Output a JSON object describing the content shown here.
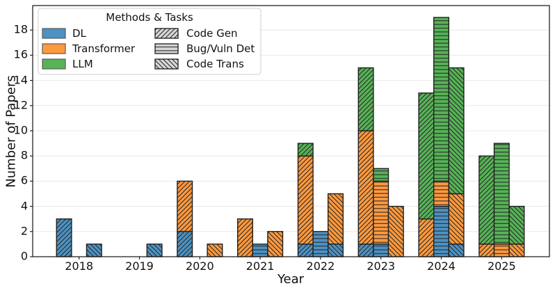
{
  "chart_data": {
    "type": "bar",
    "stacked_by": "method",
    "grouped_by": "task",
    "title": "",
    "xlabel": "Year",
    "ylabel": "Number of Papers",
    "legend_title": "Methods & Tasks",
    "categories": [
      "2018",
      "2019",
      "2020",
      "2021",
      "2022",
      "2023",
      "2024",
      "2025"
    ],
    "yticks": [
      0,
      2,
      4,
      6,
      8,
      10,
      12,
      14,
      16,
      18
    ],
    "ylim": [
      0,
      19.9
    ],
    "grid": "horizontal",
    "legend_position": "upper left",
    "colors": {
      "dl": "#4C92C3",
      "transformer": "#FF993E",
      "llm": "#56B356",
      "bar_edge": "#1f1f1f",
      "grid": "#e8e8e8",
      "hatch_swatch_fill": "#d6d6d6"
    },
    "methods": [
      {
        "name": "DL",
        "color": "#4C92C3"
      },
      {
        "name": "Transformer",
        "color": "#FF993E"
      },
      {
        "name": "LLM",
        "color": "#56B356"
      }
    ],
    "tasks": [
      {
        "name": "Code Gen",
        "hatch": "diagonal-forward"
      },
      {
        "name": "Bug/Vuln Det",
        "hatch": "horizontal"
      },
      {
        "name": "Code Trans",
        "hatch": "diagonal-backward"
      }
    ],
    "series": [
      {
        "task": "Code Gen",
        "stacks": [
          {
            "method": "DL",
            "values": [
              3,
              0,
              2,
              0,
              1,
              1,
              0,
              0
            ]
          },
          {
            "method": "Transformer",
            "values": [
              0,
              0,
              4,
              3,
              7,
              9,
              3,
              1
            ]
          },
          {
            "method": "LLM",
            "values": [
              0,
              0,
              0,
              0,
              1,
              5,
              10,
              7
            ]
          }
        ]
      },
      {
        "task": "Bug/Vuln Det",
        "stacks": [
          {
            "method": "DL",
            "values": [
              0,
              0,
              0,
              1,
              2,
              1,
              4,
              0
            ]
          },
          {
            "method": "Transformer",
            "values": [
              0,
              0,
              0,
              0,
              0,
              5,
              2,
              1
            ]
          },
          {
            "method": "LLM",
            "values": [
              0,
              0,
              0,
              0,
              0,
              1,
              13,
              8
            ]
          }
        ]
      },
      {
        "task": "Code Trans",
        "stacks": [
          {
            "method": "DL",
            "values": [
              1,
              1,
              0,
              0,
              1,
              0,
              1,
              0
            ]
          },
          {
            "method": "Transformer",
            "values": [
              0,
              0,
              1,
              2,
              4,
              4,
              4,
              1
            ]
          },
          {
            "method": "LLM",
            "values": [
              0,
              0,
              0,
              0,
              0,
              0,
              10,
              3
            ]
          }
        ]
      }
    ],
    "totals_by_year_check": {
      "2018": [
        3,
        0,
        1
      ],
      "2019": [
        0,
        0,
        1
      ],
      "2020": [
        6,
        0,
        1
      ],
      "2021": [
        3,
        1,
        2
      ],
      "2022": [
        9,
        2,
        5
      ],
      "2023": [
        15,
        7,
        4
      ],
      "2024": [
        13,
        19,
        15
      ],
      "2025": [
        8,
        9,
        4
      ]
    }
  }
}
